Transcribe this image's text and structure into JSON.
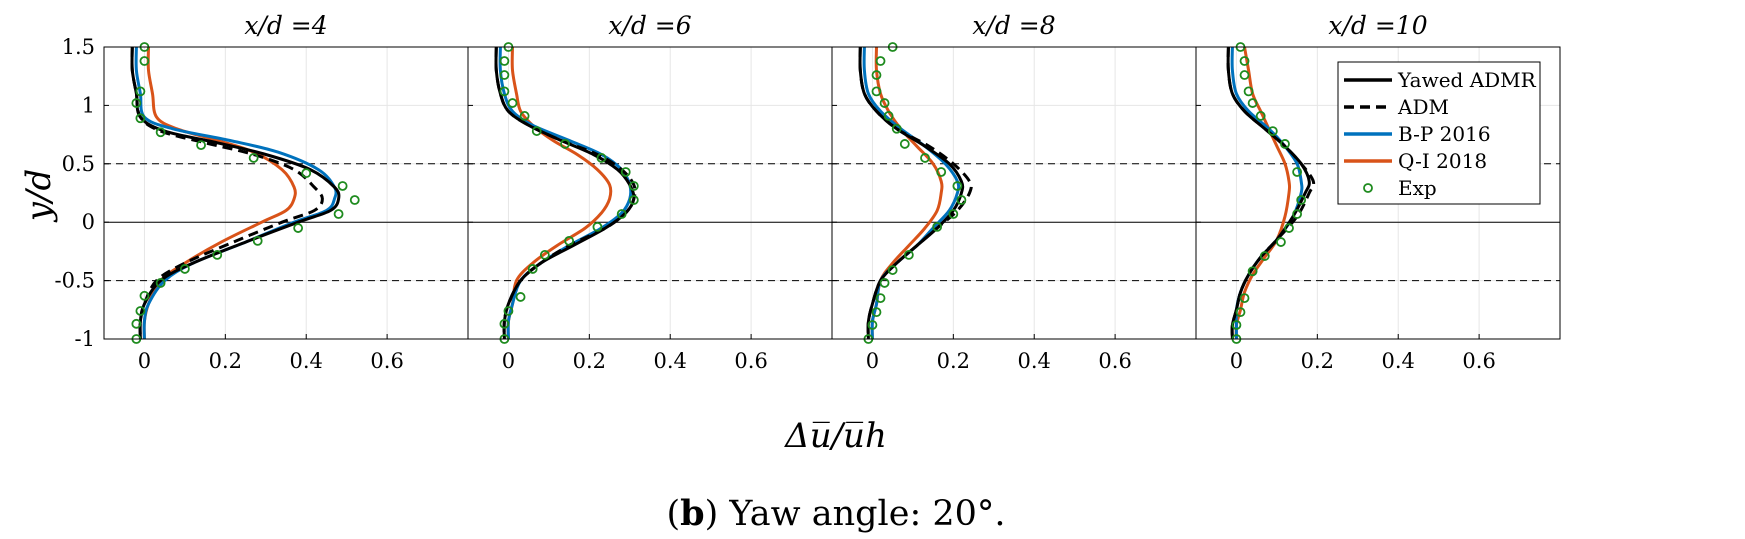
{
  "caption": {
    "prefix": "(",
    "bold": "b",
    "text": ") Yaw angle: 20°."
  },
  "chart_data": {
    "type": "line",
    "panels": [
      {
        "title": "x/d =4",
        "series": [
          {
            "name": "Yawed ADMR",
            "x": [
              -0.03,
              -0.03,
              -0.02,
              -0.01,
              0.05,
              0.18,
              0.3,
              0.41,
              0.47,
              0.48,
              0.46,
              0.38,
              0.25,
              0.12,
              0.04,
              0.0,
              -0.01,
              -0.01
            ],
            "y": [
              1.5,
              1.3,
              1.1,
              0.9,
              0.78,
              0.68,
              0.58,
              0.45,
              0.3,
              0.2,
              0.1,
              0.0,
              -0.17,
              -0.35,
              -0.5,
              -0.7,
              -0.85,
              -1.0
            ]
          },
          {
            "name": "ADM",
            "x": [
              -0.03,
              -0.03,
              -0.02,
              -0.01,
              0.04,
              0.15,
              0.27,
              0.37,
              0.42,
              0.44,
              0.42,
              0.34,
              0.22,
              0.1,
              0.03,
              0.0,
              -0.01,
              -0.01
            ],
            "y": [
              1.5,
              1.3,
              1.1,
              0.9,
              0.78,
              0.68,
              0.58,
              0.45,
              0.3,
              0.2,
              0.1,
              0.0,
              -0.17,
              -0.35,
              -0.5,
              -0.7,
              -0.85,
              -1.0
            ]
          },
          {
            "name": "B-P 2016",
            "x": [
              -0.02,
              -0.02,
              -0.01,
              0.0,
              0.07,
              0.21,
              0.33,
              0.43,
              0.47,
              0.47,
              0.45,
              0.37,
              0.25,
              0.12,
              0.05,
              0.01,
              0.0,
              0.0
            ],
            "y": [
              1.5,
              1.3,
              1.1,
              0.9,
              0.8,
              0.7,
              0.6,
              0.45,
              0.3,
              0.2,
              0.1,
              0.0,
              -0.17,
              -0.35,
              -0.5,
              -0.7,
              -0.85,
              -1.0
            ]
          },
          {
            "name": "Q-I 2018",
            "x": [
              0.01,
              0.01,
              0.02,
              0.03,
              0.08,
              0.18,
              0.27,
              0.34,
              0.37,
              0.37,
              0.35,
              0.29,
              0.19,
              0.1,
              0.04,
              0.01,
              0.0,
              0.0
            ],
            "y": [
              1.5,
              1.3,
              1.1,
              0.9,
              0.8,
              0.7,
              0.6,
              0.45,
              0.3,
              0.2,
              0.1,
              0.0,
              -0.17,
              -0.35,
              -0.5,
              -0.7,
              -0.85,
              -1.0
            ]
          }
        ],
        "exp": {
          "name": "Exp",
          "x": [
            0.0,
            0.0,
            -0.01,
            -0.02,
            -0.01,
            0.04,
            0.14,
            0.27,
            0.4,
            0.49,
            0.52,
            0.48,
            0.38,
            0.28,
            0.18,
            0.1,
            0.04,
            0.0,
            -0.01,
            -0.02,
            -0.02
          ],
          "y": [
            1.5,
            1.38,
            1.12,
            1.02,
            0.89,
            0.77,
            0.66,
            0.55,
            0.42,
            0.31,
            0.19,
            0.07,
            -0.05,
            -0.16,
            -0.28,
            -0.4,
            -0.52,
            -0.63,
            -0.76,
            -0.87,
            -1.0
          ]
        }
      },
      {
        "title": "x/d =6",
        "series": [
          {
            "name": "Yawed ADMR",
            "x": [
              -0.03,
              -0.03,
              -0.02,
              0.0,
              0.05,
              0.13,
              0.21,
              0.27,
              0.3,
              0.31,
              0.29,
              0.24,
              0.16,
              0.08,
              0.03,
              0.0,
              -0.01,
              -0.01
            ],
            "y": [
              1.5,
              1.3,
              1.1,
              0.95,
              0.83,
              0.7,
              0.58,
              0.45,
              0.32,
              0.2,
              0.08,
              -0.05,
              -0.2,
              -0.35,
              -0.5,
              -0.7,
              -0.85,
              -1.0
            ]
          },
          {
            "name": "ADM",
            "x": [
              -0.03,
              -0.03,
              -0.02,
              0.0,
              0.05,
              0.13,
              0.22,
              0.28,
              0.31,
              0.31,
              0.29,
              0.24,
              0.15,
              0.08,
              0.03,
              0.0,
              -0.01,
              -0.01
            ],
            "y": [
              1.5,
              1.3,
              1.1,
              0.95,
              0.83,
              0.7,
              0.58,
              0.45,
              0.32,
              0.2,
              0.08,
              -0.05,
              -0.2,
              -0.35,
              -0.5,
              -0.7,
              -0.85,
              -1.0
            ]
          },
          {
            "name": "B-P 2016",
            "x": [
              -0.02,
              -0.02,
              -0.01,
              0.01,
              0.06,
              0.15,
              0.23,
              0.28,
              0.3,
              0.3,
              0.28,
              0.23,
              0.15,
              0.08,
              0.03,
              0.01,
              0.0,
              0.0
            ],
            "y": [
              1.5,
              1.3,
              1.1,
              0.95,
              0.83,
              0.7,
              0.58,
              0.45,
              0.32,
              0.2,
              0.08,
              -0.05,
              -0.2,
              -0.35,
              -0.5,
              -0.7,
              -0.85,
              -1.0
            ]
          },
          {
            "name": "Q-I 2018",
            "x": [
              0.01,
              0.01,
              0.02,
              0.03,
              0.06,
              0.11,
              0.17,
              0.22,
              0.25,
              0.25,
              0.23,
              0.19,
              0.12,
              0.06,
              0.02,
              0.01,
              0.0,
              0.0
            ],
            "y": [
              1.5,
              1.3,
              1.1,
              0.95,
              0.83,
              0.7,
              0.58,
              0.45,
              0.32,
              0.2,
              0.08,
              -0.05,
              -0.2,
              -0.35,
              -0.5,
              -0.7,
              -0.85,
              -1.0
            ]
          }
        ],
        "exp": {
          "name": "Exp",
          "x": [
            0.0,
            -0.01,
            -0.01,
            -0.01,
            0.01,
            0.04,
            0.07,
            0.14,
            0.23,
            0.29,
            0.31,
            0.31,
            0.28,
            0.22,
            0.15,
            0.09,
            0.06,
            0.03,
            0.0,
            -0.01,
            -0.01
          ],
          "y": [
            1.5,
            1.38,
            1.26,
            1.12,
            1.02,
            0.91,
            0.78,
            0.67,
            0.55,
            0.43,
            0.31,
            0.19,
            0.07,
            -0.04,
            -0.16,
            -0.28,
            -0.4,
            -0.64,
            -0.76,
            -0.87,
            -1.0
          ]
        }
      },
      {
        "title": "x/d =8",
        "series": [
          {
            "name": "Yawed ADMR",
            "x": [
              -0.03,
              -0.03,
              -0.02,
              0.01,
              0.06,
              0.13,
              0.19,
              0.22,
              0.22,
              0.2,
              0.16,
              0.11,
              0.06,
              0.02,
              0.0,
              -0.01,
              -0.01
            ],
            "y": [
              1.5,
              1.3,
              1.1,
              0.95,
              0.8,
              0.65,
              0.5,
              0.35,
              0.25,
              0.1,
              -0.05,
              -0.2,
              -0.35,
              -0.5,
              -0.7,
              -0.85,
              -1.0
            ]
          },
          {
            "name": "ADM",
            "x": [
              -0.03,
              -0.03,
              -0.02,
              0.01,
              0.06,
              0.14,
              0.2,
              0.24,
              0.24,
              0.21,
              0.16,
              0.11,
              0.06,
              0.02,
              0.0,
              -0.01,
              -0.01
            ],
            "y": [
              1.5,
              1.3,
              1.1,
              0.95,
              0.8,
              0.65,
              0.5,
              0.35,
              0.25,
              0.1,
              -0.05,
              -0.2,
              -0.35,
              -0.5,
              -0.7,
              -0.85,
              -1.0
            ]
          },
          {
            "name": "B-P 2016",
            "x": [
              -0.02,
              -0.02,
              -0.01,
              0.02,
              0.07,
              0.13,
              0.18,
              0.21,
              0.21,
              0.19,
              0.15,
              0.11,
              0.06,
              0.02,
              0.01,
              0.0,
              0.0
            ],
            "y": [
              1.5,
              1.3,
              1.1,
              0.95,
              0.8,
              0.65,
              0.5,
              0.35,
              0.25,
              0.1,
              -0.05,
              -0.2,
              -0.35,
              -0.5,
              -0.7,
              -0.85,
              -1.0
            ]
          },
          {
            "name": "Q-I 2018",
            "x": [
              0.01,
              0.01,
              0.02,
              0.04,
              0.07,
              0.11,
              0.15,
              0.17,
              0.17,
              0.16,
              0.13,
              0.09,
              0.05,
              0.02,
              0.01,
              0.0,
              0.0
            ],
            "y": [
              1.5,
              1.3,
              1.1,
              0.95,
              0.8,
              0.65,
              0.5,
              0.35,
              0.25,
              0.1,
              -0.05,
              -0.2,
              -0.35,
              -0.5,
              -0.7,
              -0.85,
              -1.0
            ]
          }
        ],
        "exp": {
          "name": "Exp",
          "x": [
            0.05,
            0.02,
            0.01,
            0.01,
            0.03,
            0.04,
            0.06,
            0.08,
            0.13,
            0.17,
            0.21,
            0.22,
            0.2,
            0.16,
            0.09,
            0.05,
            0.03,
            0.02,
            0.01,
            0.0,
            -0.01
          ],
          "y": [
            1.5,
            1.38,
            1.26,
            1.12,
            1.02,
            0.91,
            0.8,
            0.67,
            0.55,
            0.43,
            0.31,
            0.19,
            0.07,
            -0.04,
            -0.28,
            -0.41,
            -0.52,
            -0.65,
            -0.77,
            -0.88,
            -1.0
          ]
        }
      },
      {
        "title": "x/d =10",
        "series": [
          {
            "name": "Yawed ADMR",
            "x": [
              -0.02,
              -0.02,
              -0.01,
              0.02,
              0.07,
              0.12,
              0.16,
              0.18,
              0.17,
              0.14,
              0.1,
              0.06,
              0.03,
              0.01,
              0.0,
              -0.01,
              -0.01
            ],
            "y": [
              1.5,
              1.3,
              1.1,
              0.95,
              0.8,
              0.65,
              0.5,
              0.35,
              0.25,
              0.05,
              -0.15,
              -0.3,
              -0.45,
              -0.6,
              -0.75,
              -0.88,
              -1.0
            ]
          },
          {
            "name": "ADM",
            "x": [
              -0.02,
              -0.02,
              -0.01,
              0.02,
              0.07,
              0.12,
              0.16,
              0.19,
              0.18,
              0.15,
              0.1,
              0.06,
              0.03,
              0.01,
              0.0,
              -0.01,
              -0.01
            ],
            "y": [
              1.5,
              1.3,
              1.1,
              0.95,
              0.8,
              0.65,
              0.5,
              0.35,
              0.25,
              0.05,
              -0.15,
              -0.3,
              -0.45,
              -0.6,
              -0.75,
              -0.88,
              -1.0
            ]
          },
          {
            "name": "B-P 2016",
            "x": [
              -0.01,
              -0.01,
              0.0,
              0.03,
              0.08,
              0.12,
              0.15,
              0.16,
              0.16,
              0.14,
              0.1,
              0.06,
              0.03,
              0.01,
              0.0,
              0.0,
              0.0
            ],
            "y": [
              1.5,
              1.3,
              1.1,
              0.95,
              0.8,
              0.65,
              0.5,
              0.35,
              0.25,
              0.05,
              -0.15,
              -0.3,
              -0.45,
              -0.6,
              -0.75,
              -0.88,
              -1.0
            ]
          },
          {
            "name": "Q-I 2018",
            "x": [
              0.02,
              0.03,
              0.04,
              0.06,
              0.08,
              0.1,
              0.12,
              0.13,
              0.13,
              0.12,
              0.1,
              0.07,
              0.04,
              0.02,
              0.01,
              0.0,
              0.0
            ],
            "y": [
              1.5,
              1.3,
              1.1,
              0.95,
              0.8,
              0.65,
              0.5,
              0.35,
              0.25,
              0.05,
              -0.15,
              -0.3,
              -0.45,
              -0.6,
              -0.75,
              -0.88,
              -1.0
            ]
          }
        ],
        "exp": {
          "name": "Exp",
          "x": [
            0.01,
            0.02,
            0.02,
            0.03,
            0.04,
            0.06,
            0.09,
            0.12,
            0.15,
            0.16,
            0.15,
            0.13,
            0.11,
            0.07,
            0.04,
            0.02,
            0.01,
            0.0,
            0.0
          ],
          "y": [
            1.5,
            1.38,
            1.26,
            1.12,
            1.02,
            0.91,
            0.78,
            0.67,
            0.43,
            0.19,
            0.07,
            -0.05,
            -0.17,
            -0.29,
            -0.42,
            -0.65,
            -0.77,
            -0.88,
            -1.0
          ]
        }
      }
    ],
    "xlim": [
      -0.1,
      0.8
    ],
    "ylim": [
      -1,
      1.5
    ],
    "xticks": [
      "0",
      "0.2",
      "0.4",
      "0.6"
    ],
    "yticks": [
      "-1",
      "-0.5",
      "0",
      "0.5",
      "1",
      "1.5"
    ],
    "xlabel": "Δu̅/u̅h",
    "ylabel": "y/d",
    "reference_lines_y": [
      0.5,
      -0.5
    ],
    "grid": true,
    "legend": {
      "placement": "top-right of last panel",
      "entries": [
        "Yawed ADMR",
        "ADM",
        "B-P 2016",
        "Q-I 2018",
        "Exp"
      ]
    },
    "styles": {
      "Yawed ADMR": {
        "color": "#000000",
        "dash": "solid"
      },
      "ADM": {
        "color": "#000000",
        "dash": "dashed"
      },
      "B-P 2016": {
        "color": "#0072BD",
        "dash": "solid"
      },
      "Q-I 2018": {
        "color": "#D95319",
        "dash": "solid"
      },
      "Exp": {
        "color": "#1E8B1E",
        "marker": "circle"
      }
    }
  }
}
